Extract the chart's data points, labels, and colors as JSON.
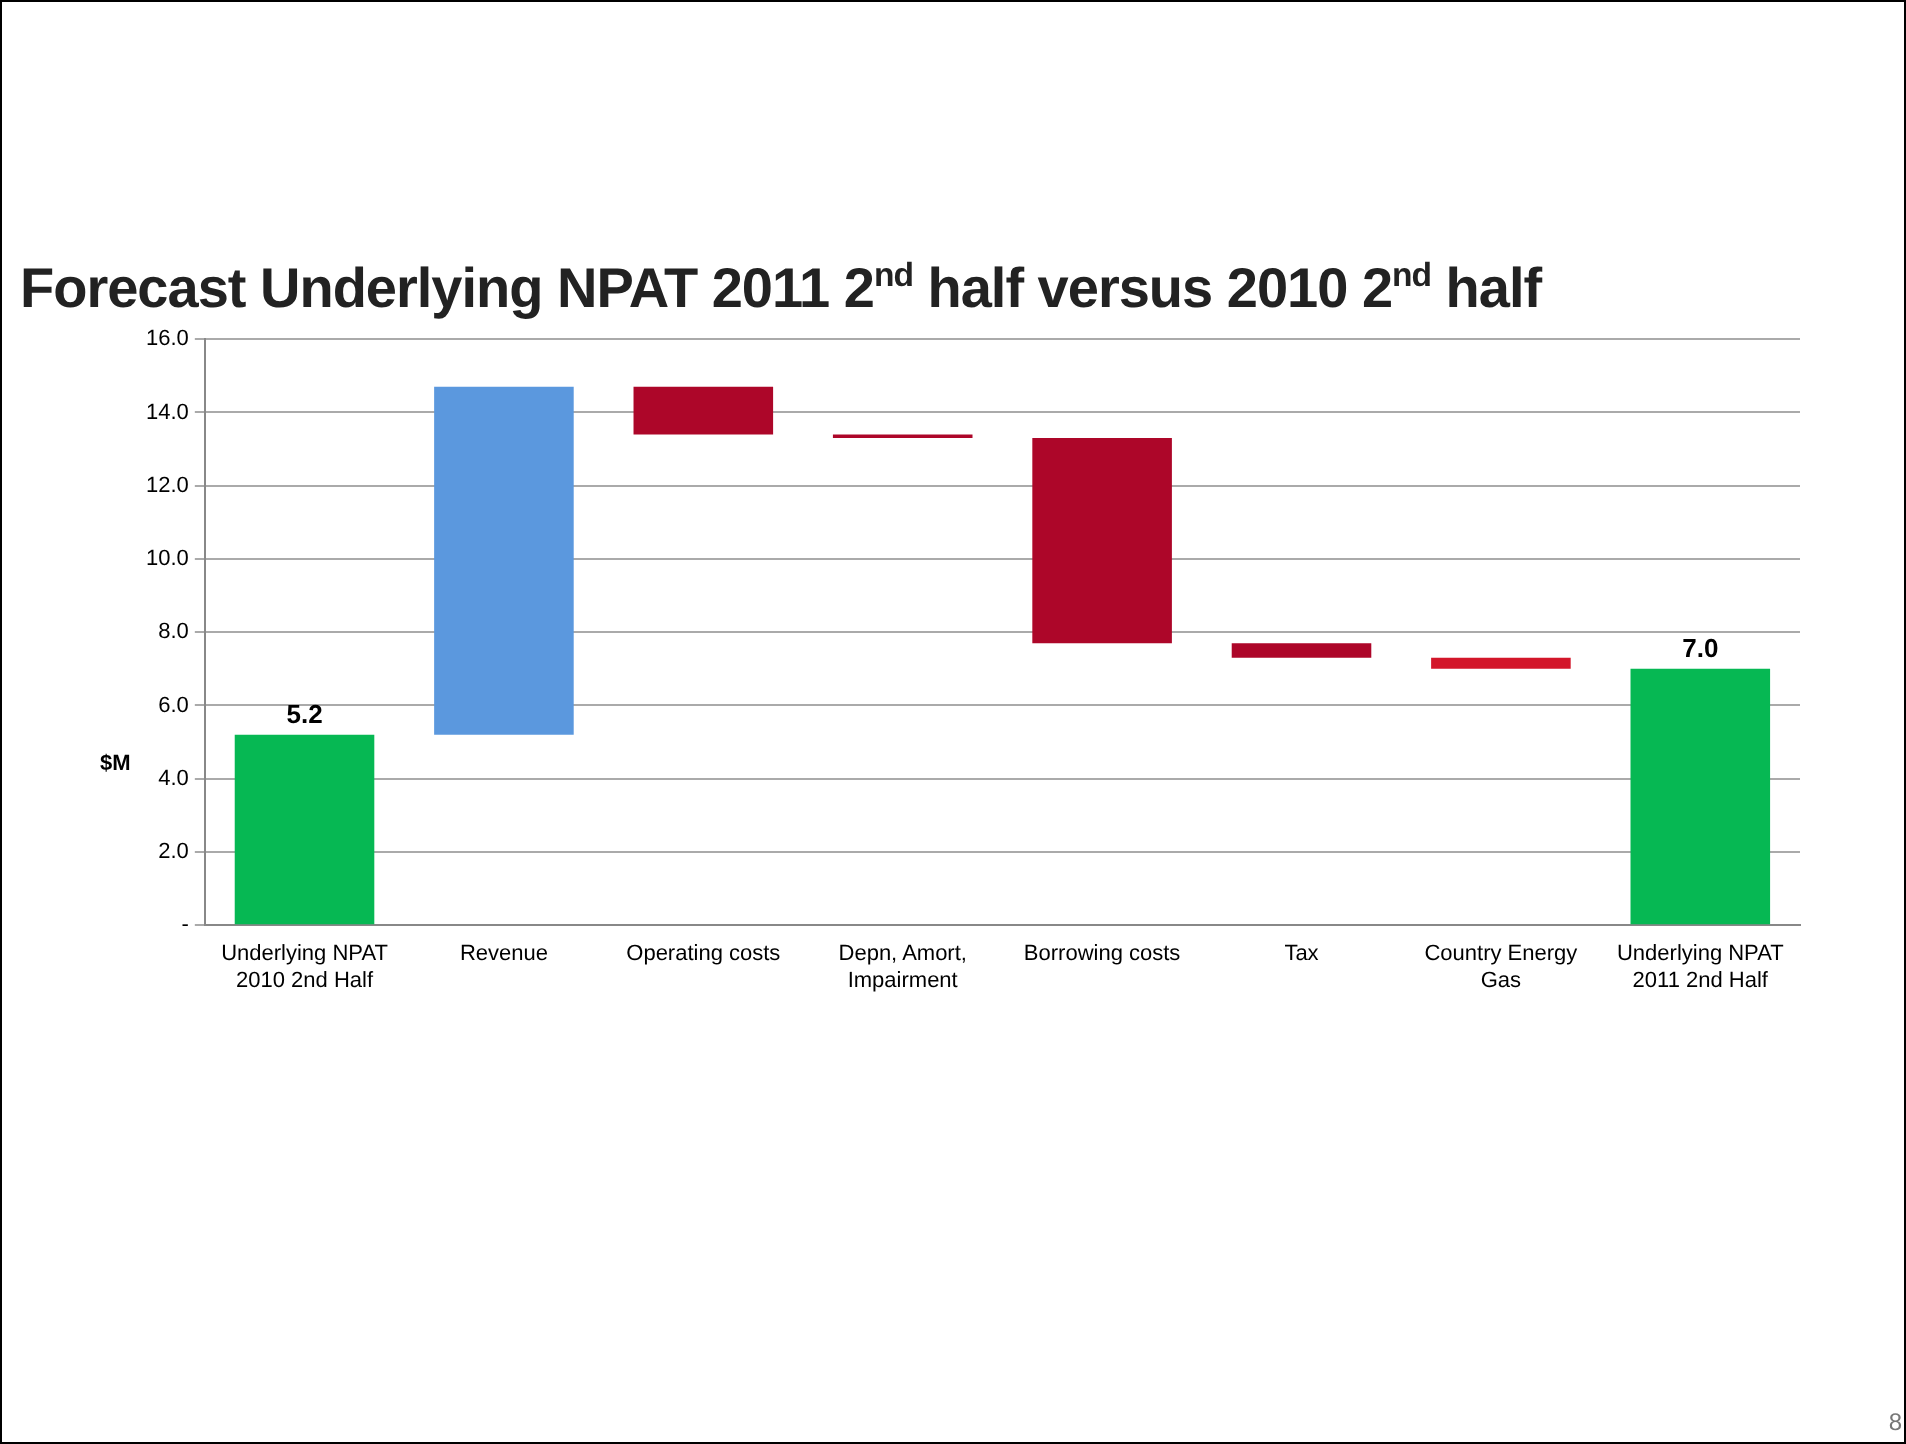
{
  "chart_data": {
    "type": "bar",
    "title": "Forecast Underlying NPAT 2011 2$^{nd}$ half versus 2010 2$^{nd}$ half",
    "ylabel": "$M",
    "categories": [
      "Underlying NPAT 2010 2nd Half",
      "Revenue",
      "Operating costs",
      "Depn, Amort, Impairment",
      "Borrowing costs",
      "Tax",
      "Country Energy Gas",
      "Underlying NPAT 2011 2nd Half"
    ],
    "values": [
      5.2,
      9.5,
      -1.3,
      -0.1,
      -5.6,
      -0.4,
      -0.3,
      7.0
    ],
    "base": [
      0,
      5.2,
      14.7,
      13.4,
      13.3,
      7.7,
      7.3,
      0
    ],
    "colors": [
      "#06b853",
      "#5b98de",
      "#ad0629",
      "#ad0629",
      "#ad0629",
      "#ad0629",
      "#d3162a",
      "#06b853"
    ],
    "value_labels": [
      "5.2",
      null,
      null,
      null,
      null,
      null,
      null,
      "7.0"
    ],
    "ylim": [
      0,
      16
    ],
    "yticks": [
      {
        "value": 0,
        "label": "-"
      },
      {
        "value": 2,
        "label": "2.0"
      },
      {
        "value": 4,
        "label": "4.0"
      },
      {
        "value": 6,
        "label": "6.0"
      },
      {
        "value": 8,
        "label": "8.0"
      },
      {
        "value": 10,
        "label": "10.0"
      },
      {
        "value": 12,
        "label": "12.0"
      },
      {
        "value": 14,
        "label": "14.0"
      },
      {
        "value": 16,
        "label": "16.0"
      }
    ],
    "grid": "y",
    "annotations": [
      "8"
    ]
  }
}
